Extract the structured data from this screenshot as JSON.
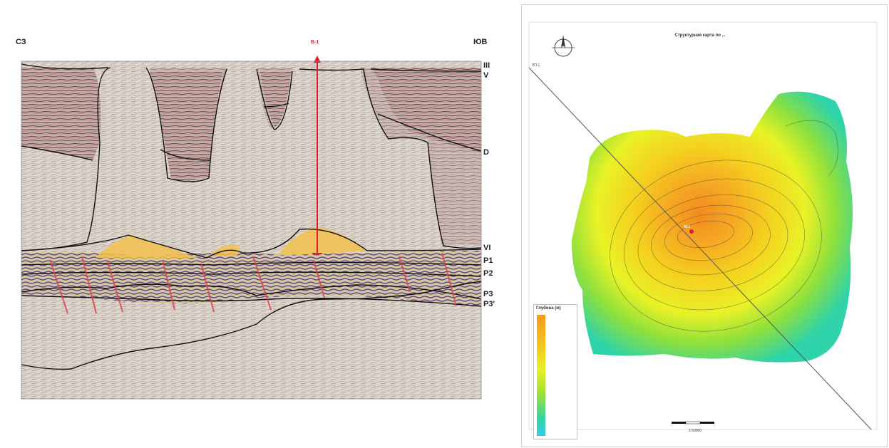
{
  "seismic_section": {
    "left_label": "СЗ",
    "right_label": "ЮВ",
    "well_label": "В-1",
    "horizons": [
      "III",
      "V",
      "D",
      "VI",
      "P1",
      "P2",
      "P3",
      "P3'"
    ]
  },
  "structure_map": {
    "title": "Структурная карта по ...",
    "legend_title": "Глубина (м)",
    "scale_label": "1:50000",
    "well_label": "В-1",
    "profile_label": "ЛП-1"
  },
  "colors": {
    "seis_bg": "#d9d4cc",
    "salt_fill": "#f2c14e",
    "fault": "#e0434b",
    "well_line": "#e11d2b"
  }
}
